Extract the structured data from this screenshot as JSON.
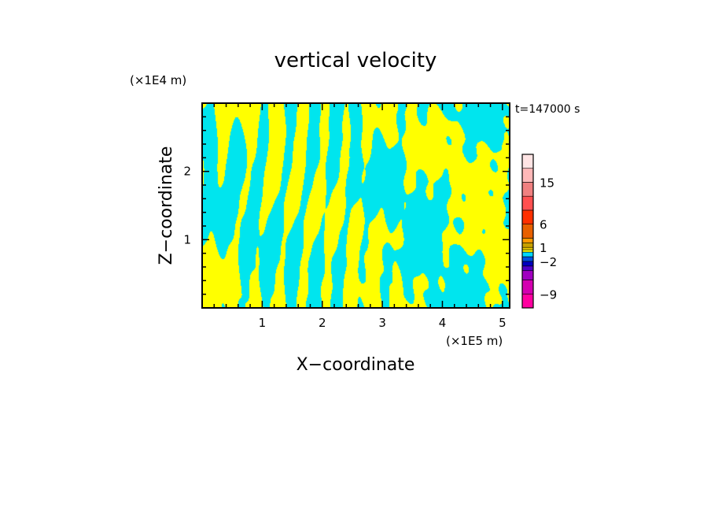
{
  "chart_data": {
    "type": "heatmap",
    "title": "vertical velocity",
    "xlabel": "X−coordinate",
    "ylabel": "Z−coordinate",
    "x_unit": "(×1E5 m)",
    "y_unit": "(×1E4 m)",
    "time_label": "t=147000 s",
    "xlim": [
      0,
      5.12
    ],
    "ylim": [
      0,
      3.0
    ],
    "x_ticks": [
      1,
      2,
      3,
      4,
      5
    ],
    "y_ticks": [
      1,
      2
    ],
    "field_values": {
      "positive": 1,
      "negative": -1,
      "positive_color": "#ffff00",
      "negative_color": "#00e5ee"
    },
    "colorbar": {
      "levels": [
        -12,
        -9,
        -6,
        -4,
        -3,
        -2,
        -1,
        0,
        0.5,
        1,
        2,
        3,
        6,
        9,
        12,
        15,
        18,
        24
      ],
      "colors": [
        "#ff00a0",
        "#d400b0",
        "#a000c0",
        "#5000c8",
        "#0000c0",
        "#0050e0",
        "#00d8ff",
        "#ffff00",
        "#e8c800",
        "#c8a000",
        "#ff9900",
        "#e86000",
        "#ff3000",
        "#ff5050",
        "#f08080",
        "#ffb8b8",
        "#ffe4e4"
      ],
      "tick_labels": [
        {
          "value": 15,
          "text": "15"
        },
        {
          "value": 6,
          "text": "6"
        },
        {
          "value": 1,
          "text": "1"
        },
        {
          "value": -2,
          "text": "−2"
        },
        {
          "value": -9,
          "text": "−9"
        }
      ]
    }
  }
}
